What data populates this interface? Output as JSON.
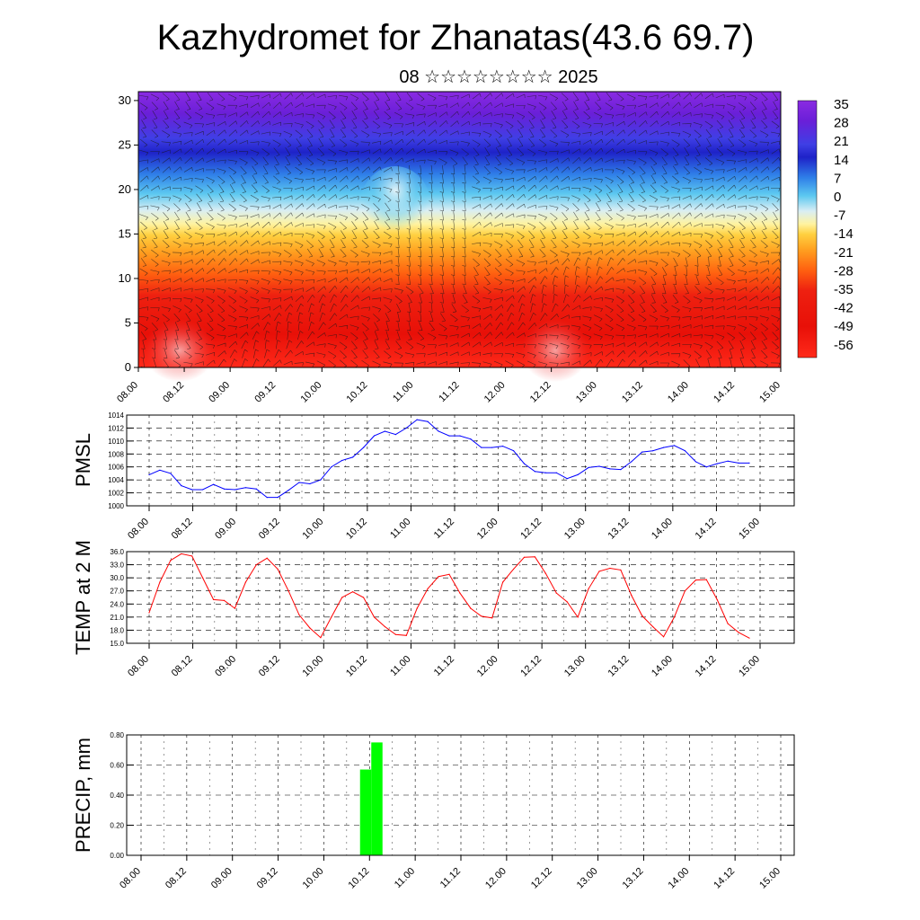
{
  "title": "Kazhydromet for Zhanatas(43.6 69.7)",
  "subtitle": "08 ☆☆☆☆☆☆☆☆ 2025",
  "colors": {
    "pmsl_line": "#0000ff",
    "temp_line": "#ff0000",
    "precip_bar": "#00ff00"
  },
  "chart_data": [
    {
      "type": "heatmap",
      "name": "cross-section",
      "x_tick_labels": [
        "08.00",
        "08.12",
        "09.00",
        "09.12",
        "10.00",
        "10.12",
        "11.00",
        "11.12",
        "12.00",
        "12.12",
        "13.00",
        "13.12",
        "14.00",
        "14.12",
        "15.00"
      ],
      "y_ticks": [
        0,
        5,
        10,
        15,
        20,
        25,
        30
      ],
      "ylim": [
        0,
        31
      ],
      "wind_barbs": true,
      "colorbar": {
        "labels": [
          "35",
          "28",
          "21",
          "14",
          "7",
          "0",
          "-7",
          "-14",
          "-21",
          "-28",
          "-35",
          "-42",
          "-49",
          "-56"
        ],
        "range": [
          -63,
          42
        ]
      }
    },
    {
      "type": "line",
      "ylabel": "PMSL",
      "ylim": [
        1000,
        1014
      ],
      "y_tick_labels": [
        "1014",
        "1012",
        "1010",
        "1008",
        "1006",
        "1004",
        "1002",
        "1000"
      ],
      "x_tick_labels": [
        "08.00",
        "08.12",
        "09.00",
        "09.12",
        "10.00",
        "10.12",
        "11.00",
        "11.12",
        "12.00",
        "12.12",
        "13.00",
        "13.12",
        "14.00",
        "14.12",
        "15.00"
      ],
      "grid": true,
      "values": [
        1004.8,
        1005.5,
        1005.0,
        1003.1,
        1002.5,
        1002.5,
        1003.3,
        1002.6,
        1002.5,
        1002.8,
        1002.6,
        1001.3,
        1001.3,
        1002.4,
        1003.6,
        1003.4,
        1004.0,
        1006.0,
        1007.0,
        1007.5,
        1009.0,
        1010.8,
        1011.5,
        1011.0,
        1012.0,
        1013.3,
        1013.0,
        1011.5,
        1010.8,
        1010.8,
        1010.3,
        1009.0,
        1009.0,
        1009.2,
        1008.5,
        1006.5,
        1005.3,
        1005.1,
        1005.1,
        1004.2,
        1004.8,
        1005.9,
        1006.1,
        1005.7,
        1005.6,
        1006.8,
        1008.3,
        1008.5,
        1009.0,
        1009.3,
        1008.5,
        1006.8,
        1006.0,
        1006.5,
        1006.9,
        1006.6,
        1006.6
      ]
    },
    {
      "type": "line",
      "ylabel": "TEMP at 2 M",
      "ylim": [
        15,
        36
      ],
      "y_tick_labels": [
        "36.0",
        "33.0",
        "30.0",
        "27.0",
        "24.0",
        "21.0",
        "18.0",
        "15.0"
      ],
      "x_tick_labels": [
        "08.00",
        "08.12",
        "09.00",
        "09.12",
        "10.00",
        "10.12",
        "11.00",
        "11.12",
        "12.00",
        "12.12",
        "13.00",
        "13.12",
        "14.00",
        "14.12",
        "15.00"
      ],
      "grid": true,
      "values": [
        22.0,
        29.0,
        34.0,
        35.5,
        35.0,
        30.0,
        25.0,
        24.8,
        23.0,
        29.0,
        33.0,
        34.5,
        32.0,
        27.0,
        21.5,
        18.5,
        16.3,
        21.0,
        25.5,
        26.8,
        25.5,
        21.0,
        18.8,
        17.0,
        16.8,
        23.0,
        27.5,
        30.3,
        30.8,
        26.5,
        23.0,
        21.2,
        20.8,
        29.0,
        32.0,
        34.7,
        34.8,
        31.0,
        26.5,
        24.5,
        21.0,
        27.5,
        31.5,
        32.2,
        31.8,
        26.0,
        21.3,
        18.8,
        16.5,
        21.0,
        27.0,
        29.5,
        29.6,
        25.0,
        19.5,
        17.5,
        16.2
      ]
    },
    {
      "type": "bar",
      "ylabel": "PRECIP, mm",
      "ylim": [
        0,
        0.8
      ],
      "y_tick_labels": [
        "0.80",
        "0.60",
        "0.40",
        "0.20",
        "0.00"
      ],
      "x_tick_labels": [
        "08.00",
        "08.12",
        "09.00",
        "09.12",
        "10.00",
        "10.12",
        "11.00",
        "11.12",
        "12.00",
        "12.12",
        "13.00",
        "13.12",
        "14.00",
        "14.12",
        "15.00"
      ],
      "grid": true,
      "values": [
        0,
        0,
        0,
        0,
        0,
        0,
        0,
        0,
        0,
        0,
        0,
        0,
        0,
        0,
        0,
        0,
        0,
        0,
        0,
        0,
        0.57,
        0.75,
        0,
        0,
        0,
        0,
        0,
        0,
        0,
        0,
        0,
        0,
        0,
        0,
        0,
        0,
        0,
        0,
        0,
        0,
        0,
        0,
        0,
        0,
        0,
        0,
        0,
        0,
        0,
        0,
        0,
        0,
        0,
        0,
        0,
        0,
        0
      ]
    }
  ]
}
